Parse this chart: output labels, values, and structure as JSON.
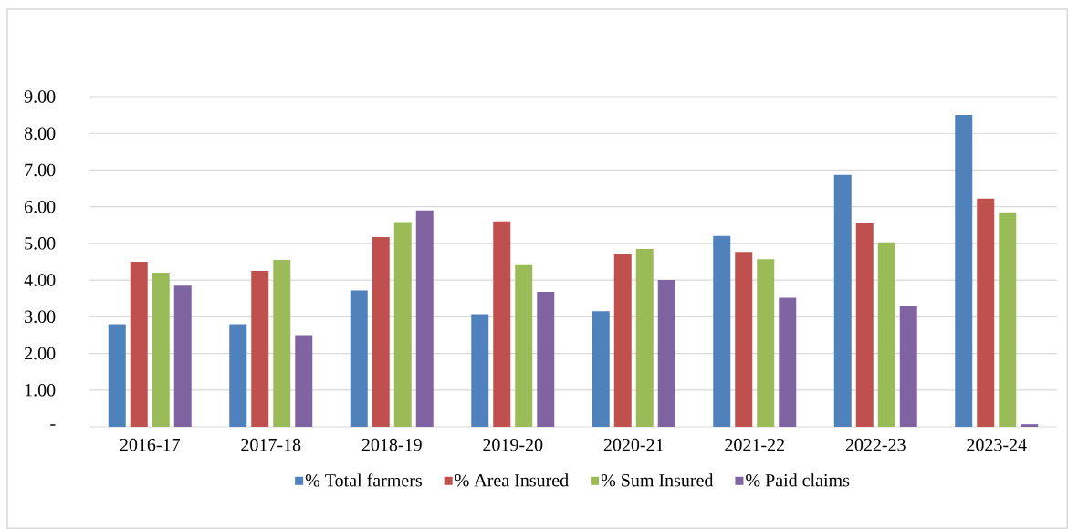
{
  "chart_data": {
    "type": "bar",
    "categories": [
      "2016-17",
      "2017-18",
      "2018-19",
      "2019-20",
      "2020-21",
      "2021-22",
      "2022-23",
      "2023-24"
    ],
    "series": [
      {
        "name": "% Total farmers",
        "color": "#4f81bd",
        "values": [
          2.8,
          2.8,
          3.72,
          3.07,
          3.15,
          5.2,
          6.87,
          8.5
        ]
      },
      {
        "name": "% Area Insured",
        "color": "#c0504d",
        "values": [
          4.5,
          4.25,
          5.17,
          5.6,
          4.7,
          4.77,
          5.55,
          6.22
        ]
      },
      {
        "name": "% Sum Insured",
        "color": "#9bbb59",
        "values": [
          4.2,
          4.55,
          5.58,
          4.43,
          4.85,
          4.57,
          5.03,
          5.85
        ]
      },
      {
        "name": "% Paid claims",
        "color": "#8064a2",
        "values": [
          3.85,
          2.5,
          5.9,
          3.68,
          4.0,
          3.52,
          3.28,
          0.07
        ]
      }
    ],
    "ylim": [
      0,
      9
    ],
    "yticks": [
      {
        "value": 0,
        "label": "-"
      },
      {
        "value": 1,
        "label": "1.00"
      },
      {
        "value": 2,
        "label": "2.00"
      },
      {
        "value": 3,
        "label": "3.00"
      },
      {
        "value": 4,
        "label": "4.00"
      },
      {
        "value": 5,
        "label": "5.00"
      },
      {
        "value": 6,
        "label": "6.00"
      },
      {
        "value": 7,
        "label": "7.00"
      },
      {
        "value": 8,
        "label": "8.00"
      },
      {
        "value": 9,
        "label": "9.00"
      }
    ],
    "grid": "y",
    "legend": "bottom"
  }
}
